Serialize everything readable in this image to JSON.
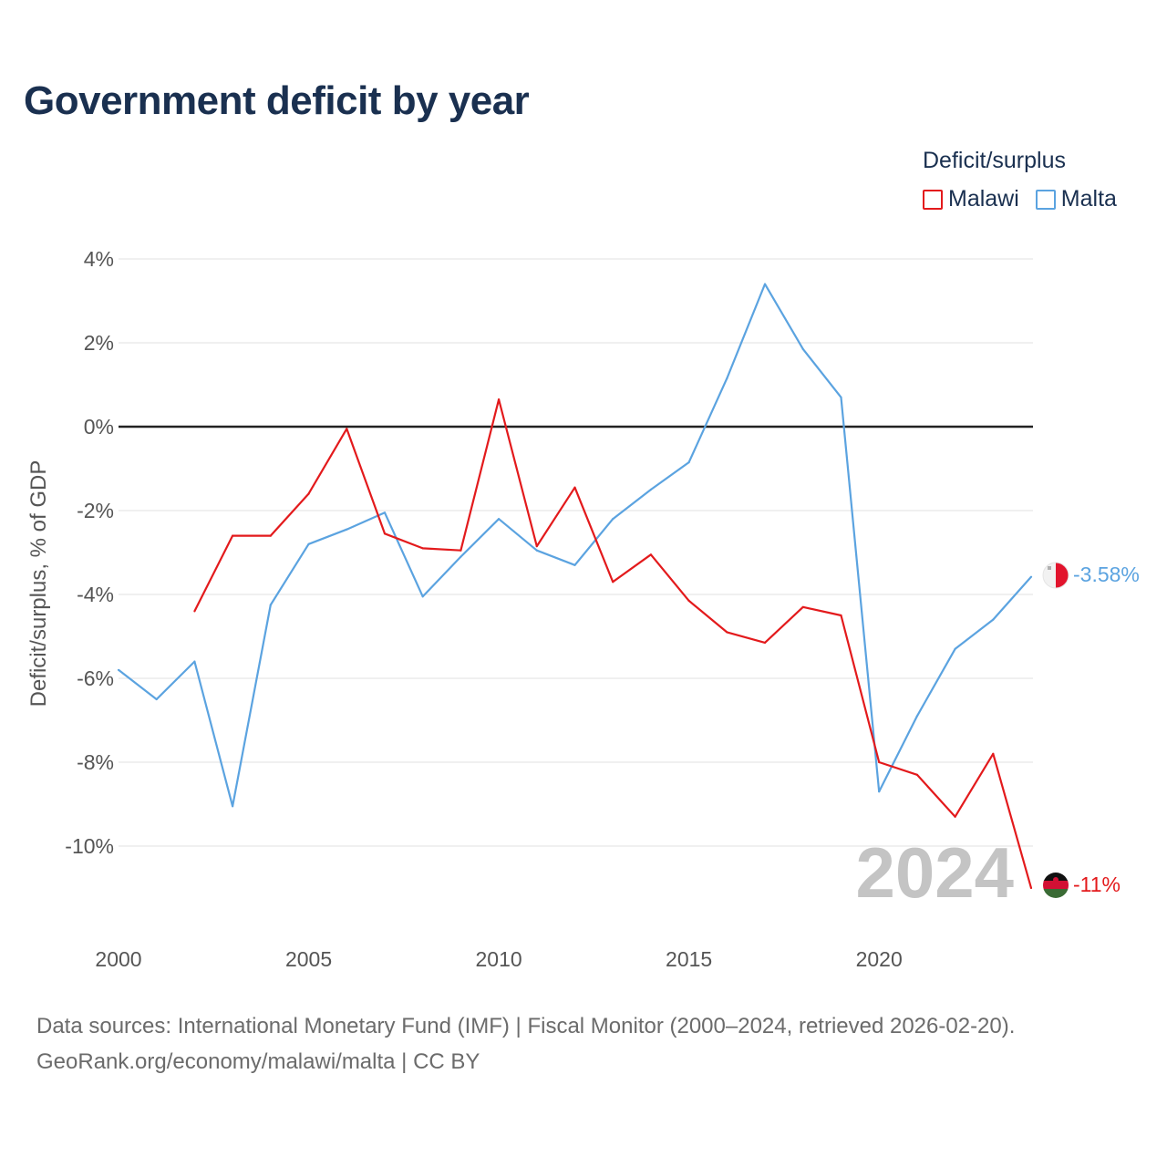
{
  "title": "Government deficit by year",
  "legend": {
    "title": "Deficit/surplus",
    "items": [
      {
        "label": "Malawi",
        "color": "#e31a1c"
      },
      {
        "label": "Malta",
        "color": "#5ba3e0"
      }
    ]
  },
  "year_watermark": "2024",
  "end_labels": {
    "malta": "-3.58%",
    "malawi": "-11%"
  },
  "source": {
    "line1": "Data sources: International Monetary Fund (IMF) | Fiscal Monitor (2000–2024, retrieved 2026-02-20).",
    "line2": "GeoRank.org/economy/malawi/malta | CC BY"
  },
  "chart_data": {
    "type": "line",
    "title": "Government deficit by year",
    "xlabel": "",
    "ylabel": "Deficit/surplus, % of GDP",
    "xlim": [
      2000,
      2024
    ],
    "ylim": [
      -12,
      4
    ],
    "x_ticks": [
      2000,
      2005,
      2010,
      2015,
      2020
    ],
    "y_ticks": [
      4,
      2,
      0,
      -2,
      -4,
      -6,
      -8,
      -10
    ],
    "y_tick_labels": [
      "4%",
      "2%",
      "0%",
      "-2%",
      "-4%",
      "-6%",
      "-8%",
      "-10%"
    ],
    "series": [
      {
        "name": "Malawi",
        "color": "#e31a1c",
        "x": [
          2002,
          2003,
          2004,
          2005,
          2006,
          2007,
          2008,
          2009,
          2010,
          2011,
          2012,
          2013,
          2014,
          2015,
          2016,
          2017,
          2018,
          2019,
          2020,
          2021,
          2022,
          2023,
          2024
        ],
        "values": [
          -4.4,
          -2.6,
          -2.6,
          -1.6,
          -0.05,
          -2.55,
          -2.9,
          -2.95,
          0.65,
          -2.85,
          -1.45,
          -3.7,
          -3.05,
          -4.15,
          -4.9,
          -5.15,
          -4.3,
          -4.5,
          -8.0,
          -8.3,
          -9.3,
          -7.8,
          -11.0
        ]
      },
      {
        "name": "Malta",
        "color": "#5ba3e0",
        "x": [
          2000,
          2001,
          2002,
          2003,
          2004,
          2005,
          2006,
          2007,
          2008,
          2009,
          2010,
          2011,
          2012,
          2013,
          2014,
          2015,
          2016,
          2017,
          2018,
          2019,
          2020,
          2021,
          2022,
          2023,
          2024
        ],
        "values": [
          -5.8,
          -6.5,
          -5.6,
          -9.05,
          -4.25,
          -2.8,
          -2.45,
          -2.05,
          -4.05,
          -3.1,
          -2.2,
          -2.95,
          -3.3,
          -2.2,
          -1.5,
          -0.85,
          1.15,
          3.4,
          1.85,
          0.7,
          -8.7,
          -6.9,
          -5.3,
          -4.6,
          -3.58
        ]
      }
    ]
  }
}
